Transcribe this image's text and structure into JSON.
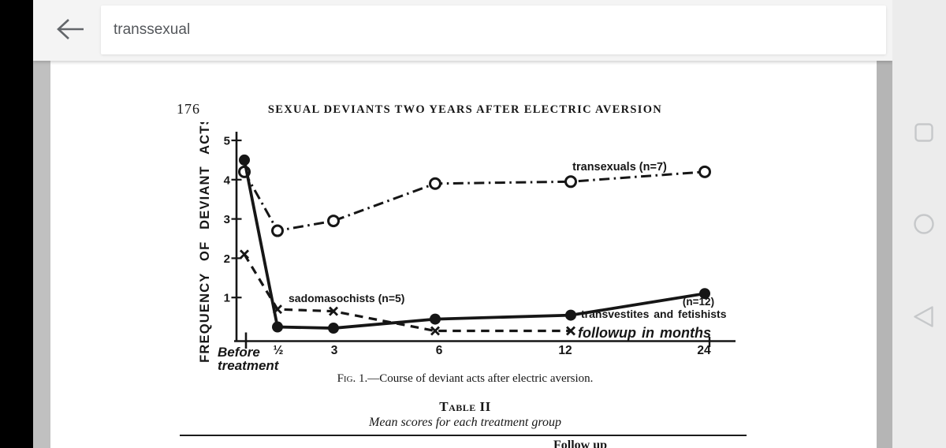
{
  "topbar": {
    "search_value": "transsexual"
  },
  "navbar": {
    "recents_icon": "square-outline",
    "home_icon": "circle-outline",
    "back_icon": "triangle-outline"
  },
  "document": {
    "page_number": "176",
    "running_head": "SEXUAL DEVIANTS TWO YEARS AFTER ELECTRIC AVERSION",
    "figure_caption_label": "Fig. 1.",
    "figure_caption_text": "—Course of deviant acts after electric aversion.",
    "table_label": "Table II",
    "table_subtitle": "Mean scores for each treatment group",
    "clipped_bottom_text": "Follow up"
  },
  "chart_data": {
    "type": "line",
    "title": "",
    "ylabel": "FREQUENCY OF DEVIANT ACTS",
    "xlabel": "followup in months",
    "x_tick_labels": [
      "Before treatment",
      "½",
      "3",
      "6",
      "12",
      "24"
    ],
    "x_months": [
      0,
      0.5,
      3,
      6,
      12,
      24
    ],
    "y_ticks": [
      1,
      2,
      3,
      4,
      5
    ],
    "ylim": [
      0,
      5
    ],
    "grid": false,
    "legend_position": "inline-annotations",
    "series": [
      {
        "name": "transexuals (n=7)",
        "marker": "open-circle",
        "line_style": "dash-dot",
        "values": [
          4.2,
          2.7,
          2.95,
          3.9,
          3.95,
          4.2
        ]
      },
      {
        "name": "transvestites and fetishists (n=12)",
        "marker": "filled-circle",
        "line_style": "solid",
        "values": [
          4.5,
          0.25,
          0.22,
          0.45,
          0.55,
          1.1
        ]
      },
      {
        "name": "sadomasochists (n=5)",
        "marker": "x",
        "line_style": "dashed",
        "values": [
          2.1,
          0.7,
          0.65,
          0.15,
          0.15
        ]
      }
    ],
    "annotations": {
      "transexuals_label": "transexuals (n=7)",
      "sadomasochists_label": "sadomasochists (n=5)",
      "transvestites_n_label": "(n=12)",
      "transvestites_label": "transvestites  and  fetishists",
      "followup_label": "followup  in  months",
      "before_label_line1": "Before",
      "before_label_line2": "treatment"
    },
    "ink_color": "#161616"
  },
  "colors": {
    "topbar_bg": "#f4f4f4",
    "navbar_bg": "#ececec",
    "nav_icon_outline": "#c6c8ca",
    "gutter_gray": "#c0c0c0",
    "scrollbar_gray": "#b5b5b5",
    "page_bg": "#ffffff",
    "search_text": "#54575b",
    "ink": "#161616"
  }
}
